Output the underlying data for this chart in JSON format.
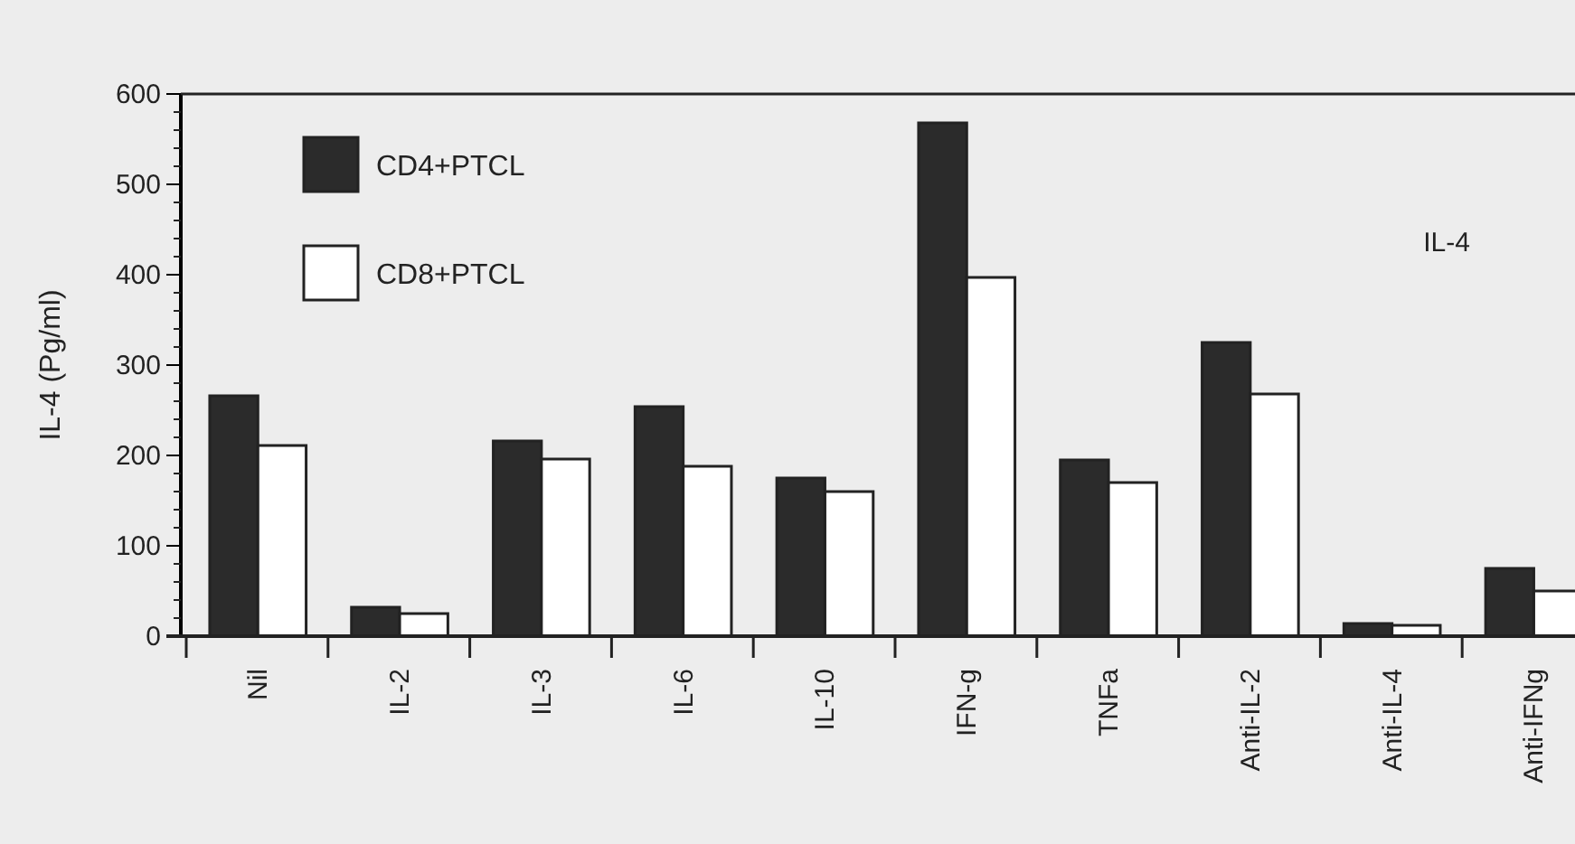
{
  "chart_data": {
    "type": "bar",
    "ylabel": "IL-4  (Pg/ml)",
    "categories": [
      "Nil",
      "IL-2",
      "IL-3",
      "IL-6",
      "IL-10",
      "IFN-g",
      "TNFa",
      "Anti-IL-2",
      "Anti-IL-4",
      "Anti-IFNg"
    ],
    "series": [
      {
        "name": "CD4+PTCL",
        "color": "#2b2b2b",
        "values": [
          266,
          32,
          216,
          254,
          175,
          568,
          195,
          325,
          14,
          75
        ]
      },
      {
        "name": "CD8+PTCL",
        "color": "#ffffff",
        "values": [
          211,
          25,
          196,
          188,
          160,
          397,
          170,
          268,
          12,
          50
        ]
      }
    ],
    "ylim": [
      0,
      600
    ],
    "yticks": [
      0,
      100,
      200,
      300,
      400,
      500,
      600
    ],
    "annotations": [
      "IL-4"
    ],
    "legend": "top left",
    "grid": false
  }
}
